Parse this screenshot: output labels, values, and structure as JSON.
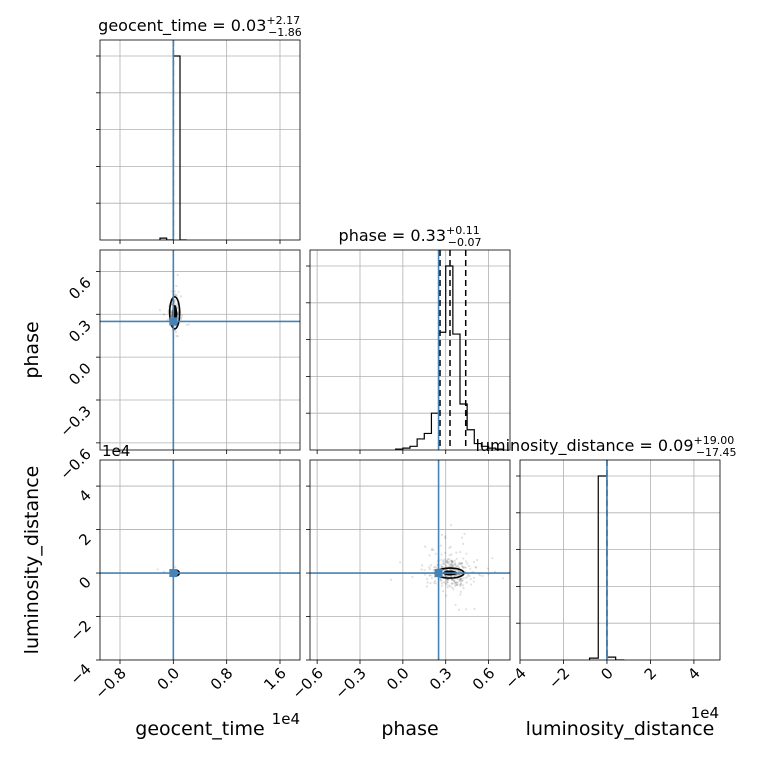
{
  "chart_data": {
    "type": "corner",
    "parameters": [
      {
        "key": "geocent_time",
        "label": "geocent_time",
        "offset_text": "1e4",
        "range": [
          -1.1,
          1.9
        ],
        "ticks": [
          -0.8,
          0.0,
          0.8,
          1.6
        ],
        "tick_labels": [
          "−0.8",
          "0.0",
          "0.8",
          "1.6"
        ],
        "truth": 0.0,
        "title": {
          "main": "geocent_time = 0.03",
          "sup": "+2.17",
          "sub": "−1.86"
        },
        "quantiles": [
          0.0
        ],
        "hist": {
          "edges": [
            -0.2,
            -0.1,
            0.0,
            0.1,
            0.2
          ],
          "counts": [
            1,
            0,
            99,
            0
          ]
        }
      },
      {
        "key": "phase",
        "label": "phase",
        "offset_text": "",
        "range": [
          -0.65,
          0.75
        ],
        "ticks": [
          -0.6,
          -0.3,
          0.0,
          0.3,
          0.6
        ],
        "tick_labels": [
          "−0.6",
          "−0.3",
          "0.0",
          "0.3",
          "0.6"
        ],
        "truth": 0.25,
        "title": {
          "main": "phase = 0.33",
          "sup": "+0.11",
          "sub": "−0.07"
        },
        "quantiles": [
          0.26,
          0.33,
          0.44
        ],
        "hist": {
          "edges": [
            -0.05,
            0.0,
            0.05,
            0.1,
            0.15,
            0.2,
            0.25,
            0.3,
            0.35,
            0.4,
            0.45,
            0.5,
            0.55,
            0.6,
            0.65,
            0.7
          ],
          "counts": [
            0.5,
            1,
            2,
            6,
            9,
            20,
            64,
            100,
            63,
            25,
            11,
            3.5,
            2,
            1,
            0.5
          ]
        }
      },
      {
        "key": "luminosity_distance",
        "label": "luminosity_distance",
        "offset_text": "1e4",
        "range": [
          -4.0,
          5.2
        ],
        "ticks": [
          -4,
          -2,
          0,
          2,
          4
        ],
        "tick_labels": [
          "−4",
          "−2",
          "0",
          "2",
          "4"
        ],
        "truth": 0.0,
        "title": {
          "main": "luminosity_distance = 0.09",
          "sup": "+19.00",
          "sub": "−17.45"
        },
        "quantiles": [
          0.0
        ],
        "hist": {
          "edges": [
            -0.8,
            -0.4,
            0.0,
            0.4,
            0.8
          ],
          "counts": [
            1,
            97,
            1.5,
            0
          ]
        }
      }
    ],
    "lower_triangle_ticks": {
      "phase_y": [
        "0.6",
        "0.3",
        "0.0",
        "−0.3",
        "−0.6"
      ],
      "luminosity_distance_y": [
        "4",
        "2",
        "0",
        "−2",
        "−4"
      ]
    },
    "truth_color": "#4682b4",
    "hist_color": "#000000",
    "grid": true,
    "legend": "none"
  }
}
